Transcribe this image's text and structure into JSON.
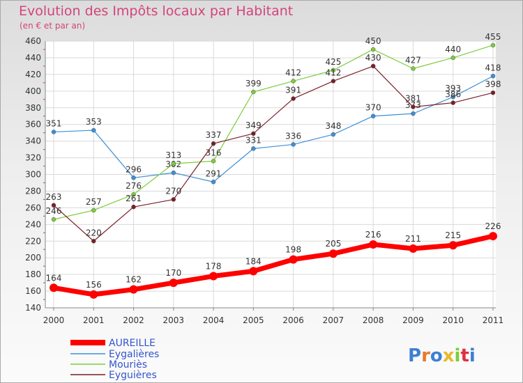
{
  "title": "Evolution des Impôts locaux par Habitant",
  "subtitle": "(en € et par an)",
  "logo_text": "Proxiti",
  "chart_data": {
    "type": "line",
    "title": "Evolution des Impôts locaux par Habitant",
    "subtitle": "(en € et par an)",
    "xlabel": "",
    "ylabel": "",
    "x": [
      "2000",
      "2001",
      "2002",
      "2003",
      "2004",
      "2005",
      "2006",
      "2007",
      "2008",
      "2009",
      "2010",
      "2011"
    ],
    "ylim": [
      140,
      460
    ],
    "yticks": [
      140,
      160,
      180,
      200,
      220,
      240,
      260,
      280,
      300,
      320,
      340,
      360,
      380,
      400,
      420,
      440,
      460
    ],
    "grid": true,
    "legend_position": "bottom-left",
    "series": [
      {
        "name": "AUREILLE",
        "color": "#ff0000",
        "values": [
          164,
          156,
          162,
          170,
          178,
          184,
          198,
          205,
          216,
          211,
          215,
          226
        ]
      },
      {
        "name": "Eygalières",
        "color": "#3d8fd6",
        "values": [
          351,
          353,
          296,
          302,
          291,
          331,
          336,
          348,
          370,
          373,
          393,
          418
        ]
      },
      {
        "name": "Mouriès",
        "color": "#7ccc3c",
        "values": [
          246,
          257,
          276,
          313,
          316,
          399,
          412,
          425,
          450,
          427,
          440,
          455
        ]
      },
      {
        "name": "Eyguières",
        "color": "#7a1e28",
        "values": [
          263,
          220,
          261,
          270,
          337,
          349,
          391,
          412,
          430,
          381,
          386,
          398
        ]
      }
    ]
  }
}
